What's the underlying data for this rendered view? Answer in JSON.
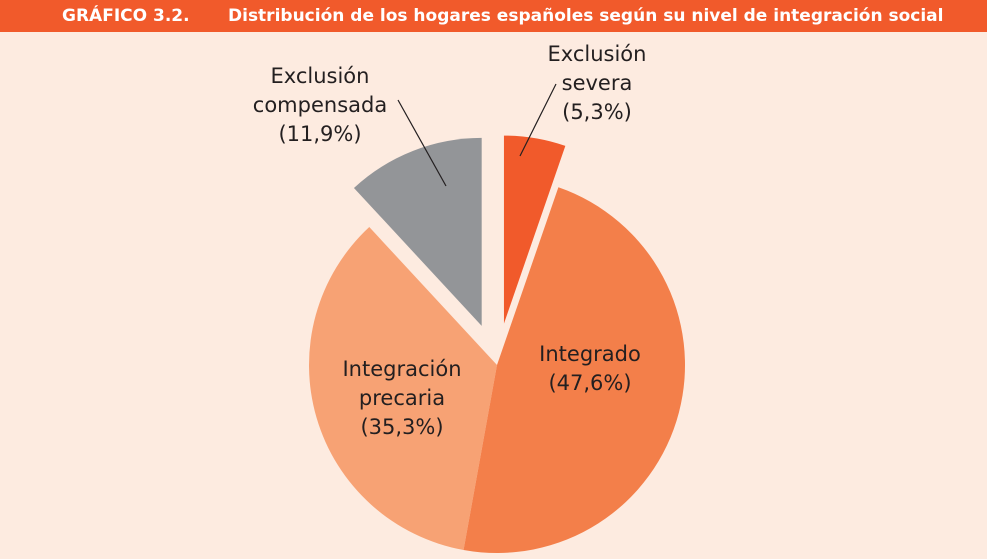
{
  "chart_data": {
    "type": "pie",
    "figure_label": "GRÁFICO 3.2.",
    "title": "Distribución de los hogares españoles según su nivel de integración social",
    "categories": [
      "Exclusión severa",
      "Integrado",
      "Integración precaria",
      "Exclusión compensada"
    ],
    "values": [
      5.3,
      47.6,
      35.3,
      11.9
    ],
    "value_labels": [
      "(5,3%)",
      "(47,6%)",
      "(35,3%)",
      "(11,9%)"
    ],
    "colors": [
      "#f15a2b",
      "#f37f4a",
      "#f7a274",
      "#939598"
    ],
    "exploded": [
      true,
      false,
      false,
      true
    ]
  }
}
